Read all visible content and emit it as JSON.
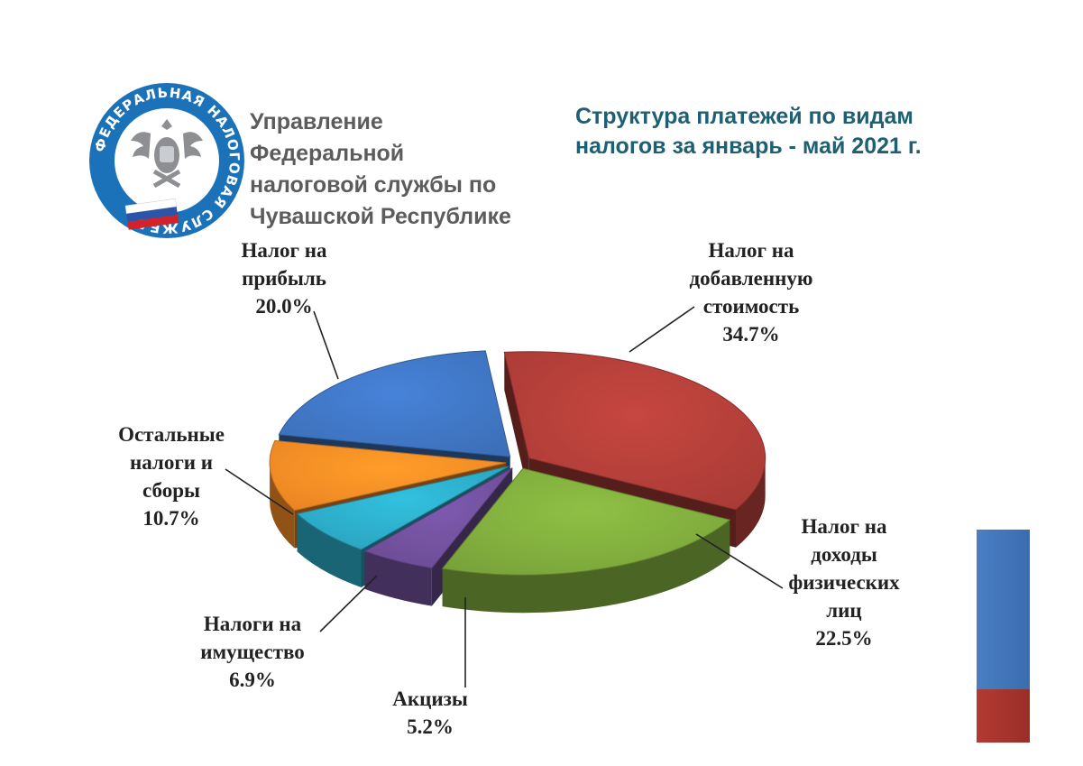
{
  "organization": {
    "logo_ring_text": "ФЕДЕРАЛЬНАЯ НАЛОГОВАЯ СЛУЖБА",
    "name_lines": [
      "Управление",
      "Федеральной",
      "налоговой службы по",
      "Чувашской Республике"
    ]
  },
  "chart_data": {
    "type": "pie",
    "title": "Структура платежей по видам налогов за январь - май 2021 г.",
    "title_lines": [
      "Структура платежей по видам",
      "налогов за январь - май 2021 г."
    ],
    "unit": "%",
    "slices": [
      {
        "key": "vat",
        "label_lines": [
          "Налог на",
          "добавленную",
          "стоимость"
        ],
        "value": 34.7,
        "value_text": "34.7%",
        "color": "#a93b36"
      },
      {
        "key": "ndfl",
        "label_lines": [
          "Налог на",
          "доходы",
          "физических",
          "лиц"
        ],
        "value": 22.5,
        "value_text": "22.5%",
        "color": "#79a33a"
      },
      {
        "key": "excise",
        "label_lines": [
          "Акцизы"
        ],
        "value": 5.2,
        "value_text": "5.2%",
        "color": "#6b4c94"
      },
      {
        "key": "property",
        "label_lines": [
          "Налоги на",
          "имущество"
        ],
        "value": 6.9,
        "value_text": "6.9%",
        "color": "#2aa3bd"
      },
      {
        "key": "other",
        "label_lines": [
          "Остальные",
          "налоги и",
          "сборы"
        ],
        "value": 10.7,
        "value_text": "10.7%",
        "color": "#ea8523"
      },
      {
        "key": "profit",
        "label_lines": [
          "Налог  на",
          "прибыль"
        ],
        "value": 20.0,
        "value_text": "20.0%",
        "color": "#3c6fb8"
      }
    ]
  },
  "side_bar": {
    "colors": [
      "#3f75bd",
      "#a8352f"
    ]
  }
}
